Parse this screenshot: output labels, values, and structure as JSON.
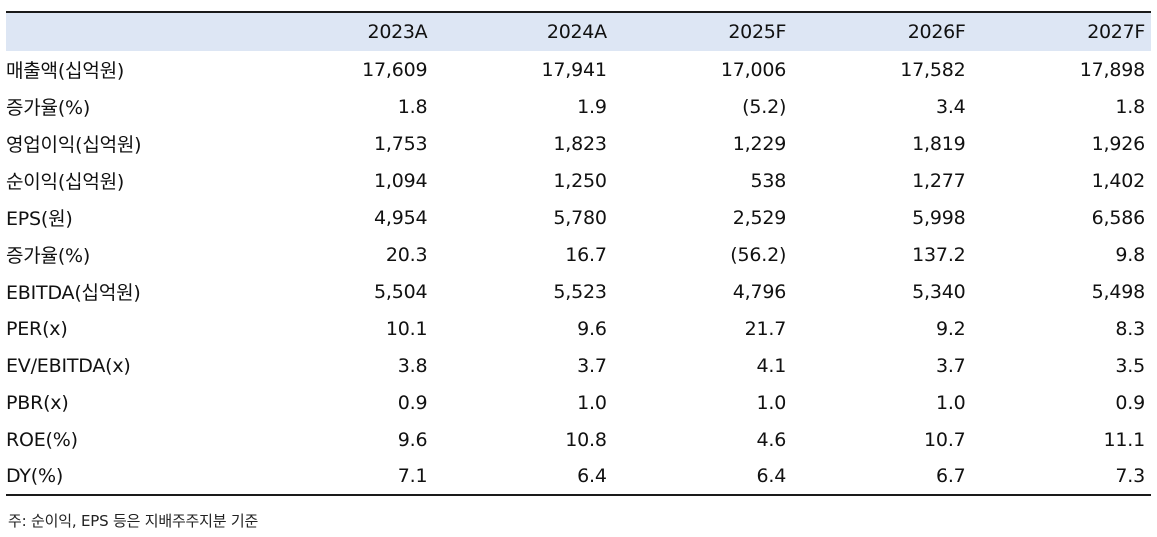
{
  "table": {
    "columns": [
      "",
      "2023A",
      "2024A",
      "2025F",
      "2026F",
      "2027F"
    ],
    "rows": [
      {
        "label": "매출액(십억원)",
        "values": [
          "17,609",
          "17,941",
          "17,006",
          "17,582",
          "17,898"
        ]
      },
      {
        "label": "증가율(%)",
        "values": [
          "1.8",
          "1.9",
          "(5.2)",
          "3.4",
          "1.8"
        ]
      },
      {
        "label": "영업이익(십억원)",
        "values": [
          "1,753",
          "1,823",
          "1,229",
          "1,819",
          "1,926"
        ]
      },
      {
        "label": "순이익(십억원)",
        "values": [
          "1,094",
          "1,250",
          "538",
          "1,277",
          "1,402"
        ]
      },
      {
        "label": "EPS(원)",
        "values": [
          "4,954",
          "5,780",
          "2,529",
          "5,998",
          "6,586"
        ]
      },
      {
        "label": "증가율(%)",
        "values": [
          "20.3",
          "16.7",
          "(56.2)",
          "137.2",
          "9.8"
        ]
      },
      {
        "label": "EBITDA(십억원)",
        "values": [
          "5,504",
          "5,523",
          "4,796",
          "5,340",
          "5,498"
        ]
      },
      {
        "label": "PER(x)",
        "values": [
          "10.1",
          "9.6",
          "21.7",
          "9.2",
          "8.3"
        ]
      },
      {
        "label": "EV/EBITDA(x)",
        "values": [
          "3.8",
          "3.7",
          "4.1",
          "3.7",
          "3.5"
        ]
      },
      {
        "label": "PBR(x)",
        "values": [
          "0.9",
          "1.0",
          "1.0",
          "1.0",
          "0.9"
        ]
      },
      {
        "label": "ROE(%)",
        "values": [
          "9.6",
          "10.8",
          "4.6",
          "10.7",
          "11.1"
        ]
      },
      {
        "label": "DY(%)",
        "values": [
          "7.1",
          "6.4",
          "6.4",
          "6.7",
          "7.3"
        ]
      }
    ]
  },
  "footnote": "주: 순이익, EPS 등은 지배주주지분 기준",
  "colors": {
    "header_bg": "#dde6f4",
    "rule": "#1a1a1a"
  }
}
